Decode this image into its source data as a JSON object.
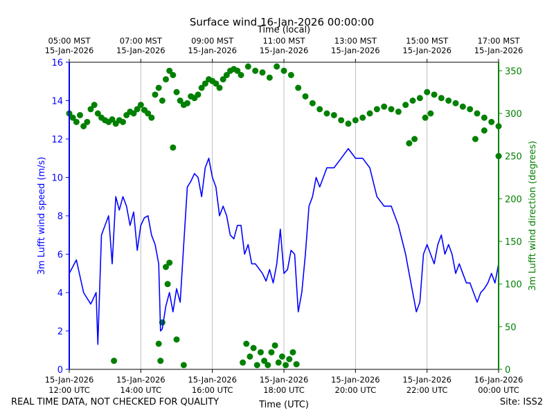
{
  "chart_data": {
    "type": "line",
    "title": "Surface wind 16-Jan-2026 00:00:00",
    "top_xlabel": "Time (local)",
    "xlabel": "Time (UTC)",
    "ylabel": "3m Lufft wind speed (m/s)",
    "ylabel_right": "3m Lufft wind direction (degrees)",
    "x_range_hours_utc": [
      12,
      24
    ],
    "ylim": [
      0,
      16
    ],
    "ylim_right": [
      0,
      360
    ],
    "yticks": [
      "0",
      "2",
      "4",
      "6",
      "8",
      "10",
      "12",
      "14",
      "16"
    ],
    "yticks_right": [
      "0",
      "50",
      "100",
      "150",
      "200",
      "250",
      "300",
      "350"
    ],
    "xticks_bottom": [
      {
        "date": "15-Jan-2026",
        "time": "12:00 UTC"
      },
      {
        "date": "15-Jan-2026",
        "time": "14:00 UTC"
      },
      {
        "date": "15-Jan-2026",
        "time": "16:00 UTC"
      },
      {
        "date": "15-Jan-2026",
        "time": "18:00 UTC"
      },
      {
        "date": "15-Jan-2026",
        "time": "20:00 UTC"
      },
      {
        "date": "15-Jan-2026",
        "time": "22:00 UTC"
      },
      {
        "date": "16-Jan-2026",
        "time": "00:00 UTC"
      }
    ],
    "xticks_top": [
      {
        "time": "05:00 MST",
        "date": "15-Jan-2026"
      },
      {
        "time": "07:00 MST",
        "date": "15-Jan-2026"
      },
      {
        "time": "09:00 MST",
        "date": "15-Jan-2026"
      },
      {
        "time": "11:00 MST",
        "date": "15-Jan-2026"
      },
      {
        "time": "13:00 MST",
        "date": "15-Jan-2026"
      },
      {
        "time": "15:00 MST",
        "date": "15-Jan-2026"
      },
      {
        "time": "17:00 MST",
        "date": "15-Jan-2026"
      }
    ],
    "grid": "vertical",
    "series": [
      {
        "role": "speed",
        "axis": "left",
        "style": "line",
        "color": "#0000ff",
        "points": [
          [
            12.0,
            5.0
          ],
          [
            12.2,
            5.7
          ],
          [
            12.4,
            4.0
          ],
          [
            12.6,
            3.4
          ],
          [
            12.75,
            4.0
          ],
          [
            12.8,
            1.3
          ],
          [
            12.9,
            7.0
          ],
          [
            13.0,
            7.5
          ],
          [
            13.1,
            8.0
          ],
          [
            13.2,
            5.5
          ],
          [
            13.3,
            9.0
          ],
          [
            13.4,
            8.3
          ],
          [
            13.5,
            9.0
          ],
          [
            13.6,
            8.5
          ],
          [
            13.7,
            7.5
          ],
          [
            13.8,
            8.2
          ],
          [
            13.9,
            6.2
          ],
          [
            14.0,
            7.5
          ],
          [
            14.1,
            7.9
          ],
          [
            14.2,
            8.0
          ],
          [
            14.3,
            7.0
          ],
          [
            14.4,
            6.5
          ],
          [
            14.5,
            5.5
          ],
          [
            14.55,
            2.0
          ],
          [
            14.6,
            2.1
          ],
          [
            14.7,
            3.3
          ],
          [
            14.8,
            4.0
          ],
          [
            14.9,
            3.0
          ],
          [
            15.0,
            4.2
          ],
          [
            15.1,
            3.5
          ],
          [
            15.2,
            6.5
          ],
          [
            15.3,
            9.5
          ],
          [
            15.4,
            9.8
          ],
          [
            15.5,
            10.2
          ],
          [
            15.6,
            10.0
          ],
          [
            15.7,
            9.0
          ],
          [
            15.8,
            10.5
          ],
          [
            15.9,
            11.0
          ],
          [
            16.0,
            10.0
          ],
          [
            16.1,
            9.5
          ],
          [
            16.2,
            8.0
          ],
          [
            16.3,
            8.5
          ],
          [
            16.4,
            8.0
          ],
          [
            16.5,
            7.0
          ],
          [
            16.6,
            6.8
          ],
          [
            16.7,
            7.5
          ],
          [
            16.8,
            7.5
          ],
          [
            16.9,
            6.0
          ],
          [
            17.0,
            6.5
          ],
          [
            17.1,
            5.5
          ],
          [
            17.2,
            5.5
          ],
          [
            17.4,
            5.0
          ],
          [
            17.5,
            4.6
          ],
          [
            17.6,
            5.2
          ],
          [
            17.7,
            4.5
          ],
          [
            17.8,
            5.5
          ],
          [
            17.9,
            7.3
          ],
          [
            18.0,
            5.0
          ],
          [
            18.1,
            5.2
          ],
          [
            18.2,
            6.2
          ],
          [
            18.3,
            6.0
          ],
          [
            18.4,
            3.0
          ],
          [
            18.5,
            4.0
          ],
          [
            18.6,
            6.0
          ],
          [
            18.7,
            8.5
          ],
          [
            18.8,
            9.0
          ],
          [
            18.9,
            10.0
          ],
          [
            19.0,
            9.5
          ],
          [
            19.2,
            10.5
          ],
          [
            19.4,
            10.5
          ],
          [
            19.6,
            11.0
          ],
          [
            19.8,
            11.5
          ],
          [
            20.0,
            11.0
          ],
          [
            20.2,
            11.0
          ],
          [
            20.4,
            10.5
          ],
          [
            20.6,
            9.0
          ],
          [
            20.8,
            8.5
          ],
          [
            21.0,
            8.5
          ],
          [
            21.2,
            7.5
          ],
          [
            21.4,
            6.0
          ],
          [
            21.5,
            5.0
          ],
          [
            21.6,
            4.0
          ],
          [
            21.7,
            3.0
          ],
          [
            21.8,
            3.5
          ],
          [
            21.9,
            6.0
          ],
          [
            22.0,
            6.5
          ],
          [
            22.1,
            6.0
          ],
          [
            22.2,
            5.5
          ],
          [
            22.3,
            6.5
          ],
          [
            22.4,
            7.0
          ],
          [
            22.5,
            6.0
          ],
          [
            22.6,
            6.5
          ],
          [
            22.7,
            6.0
          ],
          [
            22.8,
            5.0
          ],
          [
            22.9,
            5.5
          ],
          [
            23.0,
            5.0
          ],
          [
            23.1,
            4.5
          ],
          [
            23.2,
            4.5
          ],
          [
            23.3,
            4.0
          ],
          [
            23.4,
            3.5
          ],
          [
            23.5,
            4.0
          ],
          [
            23.6,
            4.2
          ],
          [
            23.7,
            4.5
          ],
          [
            23.8,
            5.0
          ],
          [
            23.9,
            4.5
          ],
          [
            24.0,
            5.5
          ]
        ]
      },
      {
        "role": "direction",
        "axis": "right",
        "style": "markers",
        "color": "#008000",
        "points": [
          [
            12.0,
            300
          ],
          [
            12.1,
            295
          ],
          [
            12.2,
            290
          ],
          [
            12.3,
            298
          ],
          [
            12.4,
            285
          ],
          [
            12.5,
            290
          ],
          [
            12.6,
            305
          ],
          [
            12.7,
            310
          ],
          [
            12.8,
            300
          ],
          [
            12.9,
            295
          ],
          [
            13.0,
            292
          ],
          [
            13.1,
            290
          ],
          [
            13.2,
            293
          ],
          [
            13.3,
            288
          ],
          [
            13.4,
            292
          ],
          [
            13.5,
            290
          ],
          [
            13.6,
            298
          ],
          [
            13.7,
            302
          ],
          [
            13.8,
            300
          ],
          [
            13.9,
            305
          ],
          [
            14.0,
            310
          ],
          [
            14.1,
            304
          ],
          [
            14.2,
            300
          ],
          [
            14.3,
            295
          ],
          [
            14.4,
            322
          ],
          [
            14.5,
            330
          ],
          [
            14.6,
            315
          ],
          [
            14.7,
            340
          ],
          [
            14.8,
            350
          ],
          [
            14.9,
            345
          ],
          [
            15.0,
            325
          ],
          [
            15.1,
            315
          ],
          [
            15.2,
            310
          ],
          [
            15.3,
            312
          ],
          [
            15.4,
            320
          ],
          [
            15.5,
            318
          ],
          [
            15.6,
            322
          ],
          [
            15.7,
            330
          ],
          [
            15.8,
            335
          ],
          [
            15.9,
            340
          ],
          [
            16.0,
            338
          ],
          [
            16.1,
            335
          ],
          [
            16.2,
            330
          ],
          [
            16.3,
            340
          ],
          [
            16.4,
            345
          ],
          [
            16.5,
            350
          ],
          [
            16.6,
            352
          ],
          [
            16.7,
            350
          ],
          [
            16.8,
            345
          ],
          [
            17.0,
            355
          ],
          [
            17.2,
            350
          ],
          [
            17.4,
            348
          ],
          [
            17.6,
            342
          ],
          [
            17.8,
            355
          ],
          [
            18.0,
            350
          ],
          [
            18.2,
            345
          ],
          [
            18.4,
            330
          ],
          [
            18.6,
            320
          ],
          [
            18.8,
            312
          ],
          [
            19.0,
            305
          ],
          [
            19.2,
            300
          ],
          [
            19.4,
            298
          ],
          [
            19.6,
            292
          ],
          [
            19.8,
            288
          ],
          [
            20.0,
            292
          ],
          [
            20.2,
            295
          ],
          [
            20.4,
            300
          ],
          [
            20.6,
            305
          ],
          [
            20.8,
            308
          ],
          [
            21.0,
            305
          ],
          [
            21.2,
            302
          ],
          [
            21.4,
            310
          ],
          [
            21.6,
            315
          ],
          [
            21.8,
            318
          ],
          [
            22.0,
            325
          ],
          [
            22.2,
            322
          ],
          [
            22.4,
            318
          ],
          [
            22.6,
            315
          ],
          [
            22.8,
            312
          ],
          [
            23.0,
            308
          ],
          [
            23.2,
            305
          ],
          [
            23.4,
            300
          ],
          [
            23.6,
            295
          ],
          [
            23.8,
            290
          ],
          [
            24.0,
            285
          ],
          [
            13.25,
            10
          ],
          [
            14.55,
            10
          ],
          [
            14.6,
            55
          ],
          [
            14.7,
            120
          ],
          [
            14.75,
            100
          ],
          [
            14.8,
            125
          ],
          [
            14.9,
            260
          ],
          [
            15.0,
            35
          ],
          [
            15.2,
            5
          ],
          [
            14.5,
            30
          ],
          [
            16.85,
            8
          ],
          [
            16.95,
            30
          ],
          [
            17.05,
            15
          ],
          [
            17.15,
            25
          ],
          [
            17.25,
            5
          ],
          [
            17.35,
            20
          ],
          [
            17.45,
            10
          ],
          [
            17.55,
            5
          ],
          [
            17.65,
            20
          ],
          [
            17.75,
            28
          ],
          [
            17.85,
            8
          ],
          [
            17.95,
            15
          ],
          [
            18.05,
            5
          ],
          [
            18.15,
            12
          ],
          [
            18.25,
            20
          ],
          [
            18.35,
            6
          ],
          [
            21.65,
            270
          ],
          [
            21.5,
            265
          ],
          [
            21.95,
            295
          ],
          [
            22.1,
            300
          ],
          [
            23.35,
            270
          ],
          [
            23.6,
            280
          ],
          [
            24.0,
            250
          ]
        ]
      }
    ]
  },
  "footer": {
    "disclaimer": "REAL TIME DATA, NOT CHECKED FOR QUALITY",
    "site": "Site: ISS2"
  },
  "colors": {
    "speed": "#0000ff",
    "direction": "#008000",
    "grid": "#b0b0b0"
  }
}
